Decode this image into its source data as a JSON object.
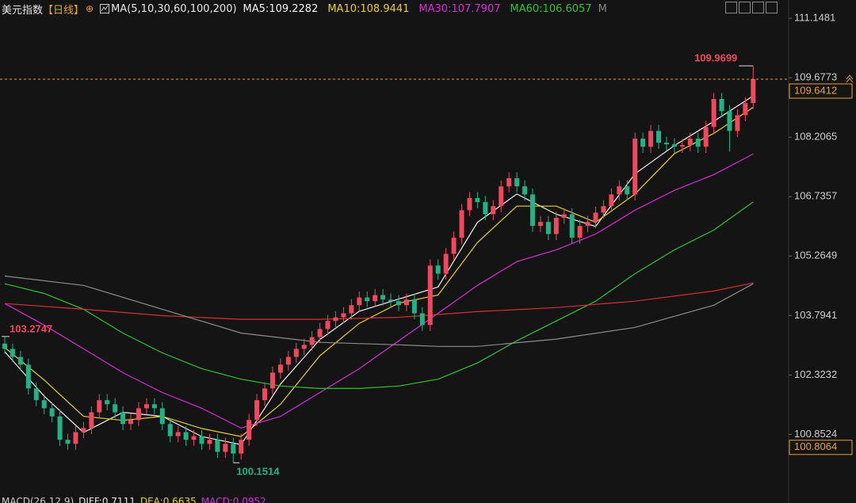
{
  "chart_data": {
    "type": "candlestick",
    "title": "美元指数",
    "period": "【日线】",
    "ma_label": "MA(5,10,30,60,100,200)",
    "legend_separator": ":",
    "truncated_legend": "M",
    "up_color": "#f0485c",
    "down_color": "#21b386",
    "ylim": [
      99.45,
      111.6
    ],
    "yticks": [
      111.1481,
      109.6773,
      108.2065,
      106.7357,
      105.2649,
      103.7941,
      102.3232,
      100.8524
    ],
    "lower_marker": 100.8064,
    "open": [
      103.1,
      102.97,
      102.77,
      102.58,
      101.99,
      101.7,
      101.5,
      101.3,
      100.72,
      100.62,
      100.91,
      101.01,
      101.4,
      101.7,
      101.6,
      101.4,
      101.11,
      101.21,
      101.5,
      101.6,
      101.5,
      101.11,
      100.81,
      100.91,
      100.72,
      100.81,
      100.62,
      100.72,
      100.42,
      100.62,
      100.38,
      100.72,
      101.21,
      101.7,
      101.99,
      102.38,
      102.58,
      102.77,
      102.97,
      103.07,
      103.26,
      103.46,
      103.66,
      103.75,
      103.85,
      104.05,
      104.24,
      104.15,
      104.3,
      104.19,
      104.15,
      104.05,
      104.19,
      103.85,
      103.56,
      105.03,
      104.83,
      105.32,
      105.72,
      106.4,
      106.7,
      106.6,
      106.3,
      106.5,
      106.99,
      107.19,
      106.99,
      106.79,
      106.01,
      106.11,
      105.81,
      106.21,
      106.3,
      105.72,
      106.01,
      106.11,
      106.34,
      106.5,
      106.79,
      106.99,
      106.79,
      108.17,
      107.97,
      108.36,
      108.07,
      108.03,
      107.97,
      108.01,
      108.17,
      107.97,
      108.46,
      109.15,
      108.85,
      108.36,
      108.75,
      109.05
    ],
    "high": [
      103.2747,
      103.1,
      102.92,
      102.73,
      102.14,
      101.85,
      101.65,
      101.45,
      100.87,
      101.06,
      101.16,
      101.55,
      101.85,
      101.85,
      101.75,
      101.55,
      101.36,
      101.65,
      101.75,
      101.75,
      101.65,
      101.26,
      101.06,
      101.06,
      100.96,
      100.96,
      100.87,
      100.87,
      100.77,
      100.77,
      100.87,
      101.36,
      101.85,
      102.14,
      102.53,
      102.73,
      102.92,
      103.12,
      103.22,
      103.41,
      103.61,
      103.81,
      103.9,
      104.0,
      104.2,
      104.39,
      104.39,
      104.45,
      104.45,
      104.34,
      104.3,
      104.34,
      104.34,
      104.0,
      105.18,
      105.18,
      105.47,
      105.87,
      106.55,
      106.85,
      106.85,
      106.75,
      106.65,
      107.14,
      107.34,
      107.34,
      107.14,
      106.94,
      106.26,
      106.26,
      106.36,
      106.45,
      106.45,
      106.16,
      106.26,
      106.49,
      106.65,
      106.94,
      107.14,
      107.14,
      108.32,
      108.32,
      108.51,
      108.51,
      108.22,
      108.18,
      108.16,
      108.32,
      108.32,
      108.61,
      109.3,
      109.3,
      109.0,
      108.9,
      109.2,
      109.9699
    ],
    "low": [
      102.85,
      102.65,
      102.43,
      101.84,
      101.55,
      101.35,
      101.15,
      100.57,
      100.47,
      100.47,
      100.76,
      100.86,
      101.25,
      101.45,
      101.25,
      100.96,
      100.96,
      101.06,
      101.35,
      101.35,
      100.96,
      100.66,
      100.66,
      100.57,
      100.57,
      100.47,
      100.47,
      100.27,
      100.27,
      100.1514,
      100.23,
      100.57,
      101.06,
      101.55,
      101.84,
      102.23,
      102.43,
      102.62,
      102.82,
      102.92,
      103.11,
      103.31,
      103.51,
      103.6,
      103.7,
      103.9,
      104.0,
      104.0,
      104.04,
      104.0,
      103.9,
      103.9,
      103.7,
      103.41,
      103.41,
      104.68,
      104.68,
      105.17,
      105.57,
      106.25,
      106.45,
      106.15,
      106.15,
      106.35,
      106.84,
      106.84,
      106.64,
      105.86,
      105.86,
      105.66,
      105.66,
      106.06,
      105.57,
      105.57,
      105.86,
      105.96,
      106.19,
      106.35,
      106.64,
      106.64,
      106.64,
      107.82,
      107.82,
      107.92,
      107.88,
      107.82,
      107.82,
      107.86,
      107.82,
      107.82,
      108.31,
      108.7,
      107.85,
      108.21,
      108.6,
      108.9
    ],
    "close": [
      102.97,
      102.77,
      102.58,
      101.99,
      101.7,
      101.5,
      101.3,
      100.72,
      100.62,
      100.91,
      101.01,
      101.4,
      101.7,
      101.6,
      101.4,
      101.11,
      101.21,
      101.5,
      101.6,
      101.5,
      101.11,
      100.81,
      100.91,
      100.72,
      100.81,
      100.62,
      100.72,
      100.42,
      100.62,
      100.38,
      100.72,
      101.21,
      101.7,
      101.99,
      102.38,
      102.58,
      102.77,
      102.97,
      103.07,
      103.26,
      103.46,
      103.66,
      103.75,
      103.85,
      104.05,
      104.24,
      104.15,
      104.3,
      104.19,
      104.15,
      104.05,
      104.19,
      103.85,
      103.56,
      105.03,
      104.83,
      105.32,
      105.72,
      106.4,
      106.7,
      106.6,
      106.3,
      106.5,
      106.99,
      107.19,
      106.99,
      106.79,
      106.01,
      106.11,
      105.81,
      106.21,
      106.3,
      105.72,
      106.01,
      106.11,
      106.34,
      106.5,
      106.79,
      106.99,
      106.79,
      108.17,
      107.97,
      108.36,
      108.07,
      108.03,
      107.97,
      108.01,
      108.17,
      107.97,
      108.46,
      109.15,
      108.85,
      108.36,
      108.75,
      109.05,
      109.6412
    ],
    "series": [
      {
        "name": "MA5",
        "color": "#f2f2f2",
        "x": [
          0,
          5,
          10,
          15,
          20,
          25,
          30,
          35,
          40,
          45,
          50,
          55,
          60,
          65,
          70,
          75,
          80,
          85,
          90,
          95
        ],
        "values": [
          102.9,
          101.8,
          100.9,
          101.4,
          101.3,
          100.8,
          100.6,
          102.1,
          103.2,
          103.9,
          104.2,
          104.5,
          106.1,
          106.8,
          106.3,
          106.0,
          107.3,
          108.0,
          108.6,
          109.2282
        ]
      },
      {
        "name": "MA10",
        "color": "#e8d12a",
        "x": [
          0,
          5,
          10,
          15,
          20,
          25,
          30,
          35,
          40,
          45,
          50,
          55,
          60,
          65,
          70,
          75,
          80,
          85,
          90,
          95
        ],
        "values": [
          103.0,
          102.2,
          101.3,
          101.2,
          101.3,
          101.0,
          100.8,
          101.6,
          102.8,
          103.6,
          104.1,
          104.3,
          105.6,
          106.5,
          106.5,
          106.1,
          106.8,
          107.8,
          108.3,
          108.9441
        ]
      },
      {
        "name": "MA30",
        "color": "#d62ed6",
        "x": [
          0,
          5,
          10,
          15,
          20,
          25,
          30,
          35,
          40,
          45,
          50,
          55,
          60,
          65,
          70,
          75,
          80,
          85,
          90,
          95
        ],
        "values": [
          104.09,
          103.56,
          102.97,
          102.38,
          101.89,
          101.5,
          101.01,
          101.3,
          101.89,
          102.48,
          103.17,
          103.85,
          104.54,
          105.13,
          105.42,
          105.81,
          106.4,
          106.89,
          107.28,
          107.7907
        ]
      },
      {
        "name": "MA60",
        "color": "#2fc42f",
        "x": [
          0,
          5,
          10,
          15,
          20,
          25,
          30,
          35,
          40,
          45,
          50,
          55,
          60,
          65,
          70,
          75,
          80,
          85,
          90,
          95
        ],
        "values": [
          104.58,
          104.34,
          103.95,
          103.36,
          102.87,
          102.48,
          102.22,
          102.05,
          101.99,
          101.99,
          102.05,
          102.22,
          102.62,
          103.17,
          103.66,
          104.15,
          104.83,
          105.42,
          105.91,
          106.6057
        ]
      },
      {
        "color": "#d83030",
        "x": [
          0,
          10,
          20,
          30,
          40,
          50,
          60,
          70,
          80,
          90,
          95
        ],
        "values": [
          104.09,
          103.95,
          103.79,
          103.7,
          103.7,
          103.75,
          103.89,
          103.99,
          104.15,
          104.4,
          104.6
        ]
      },
      {
        "color": "#8c8c8c",
        "x": [
          0,
          10,
          20,
          30,
          40,
          50,
          55,
          60,
          70,
          80,
          90,
          95
        ],
        "values": [
          104.77,
          104.54,
          103.95,
          103.36,
          103.13,
          103.07,
          103.03,
          103.03,
          103.21,
          103.5,
          104.05,
          104.58
        ]
      }
    ],
    "macd": {
      "label": "MACD(26,12,9)",
      "items": [
        {
          "name": "DIFF",
          "value": 0.7111,
          "color": "#e6e6e6"
        },
        {
          "name": "DEA",
          "value": 0.6635,
          "color": "#e8d12a"
        },
        {
          "name": "MACD",
          "value": 0.0952,
          "color": "#d62ed6"
        }
      ]
    }
  }
}
